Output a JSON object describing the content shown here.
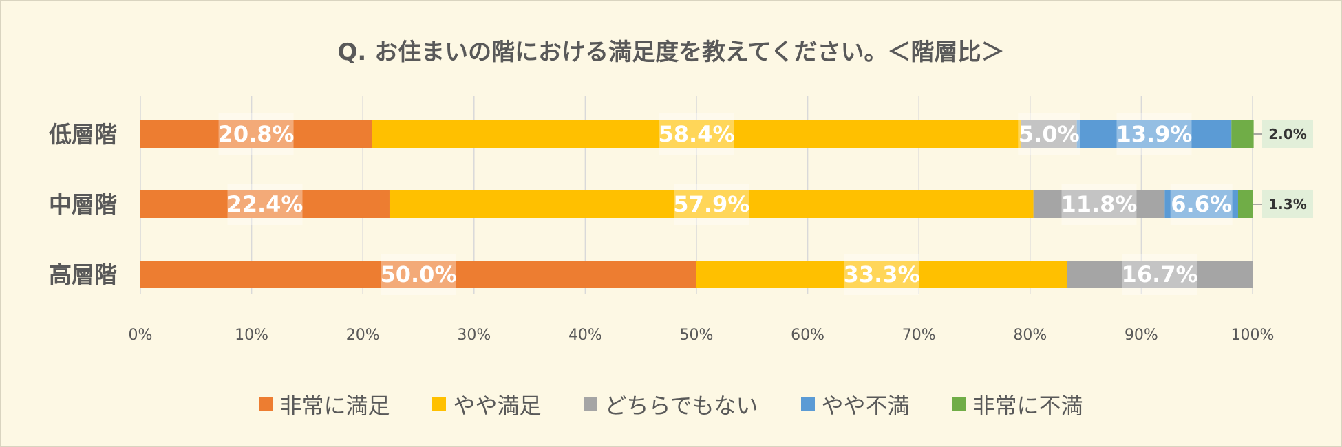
{
  "chart_data": {
    "type": "bar",
    "orientation": "horizontal",
    "stacked": "100%",
    "title": "Q. お住まいの階における満足度を教えてください。＜階層比＞",
    "categories": [
      "低層階",
      "中層階",
      "高層階"
    ],
    "series": [
      {
        "name": "非常に満足",
        "color": "#ed7d31",
        "values": [
          20.8,
          22.4,
          50.0
        ]
      },
      {
        "name": "やや満足",
        "color": "#ffc000",
        "values": [
          58.4,
          57.9,
          33.3
        ]
      },
      {
        "name": "どちらでもない",
        "color": "#a5a5a5",
        "values": [
          5.0,
          11.8,
          16.7
        ]
      },
      {
        "name": "やや不満",
        "color": "#5b9bd5",
        "values": [
          13.9,
          6.6,
          0
        ]
      },
      {
        "name": "非常に不満",
        "color": "#70ad47",
        "values": [
          2.0,
          1.3,
          0
        ]
      }
    ],
    "xlim": [
      0,
      100
    ],
    "x_ticks": [
      "0%",
      "10%",
      "20%",
      "30%",
      "40%",
      "50%",
      "60%",
      "70%",
      "80%",
      "90%",
      "100%"
    ],
    "grid": true,
    "legend_position": "bottom"
  }
}
